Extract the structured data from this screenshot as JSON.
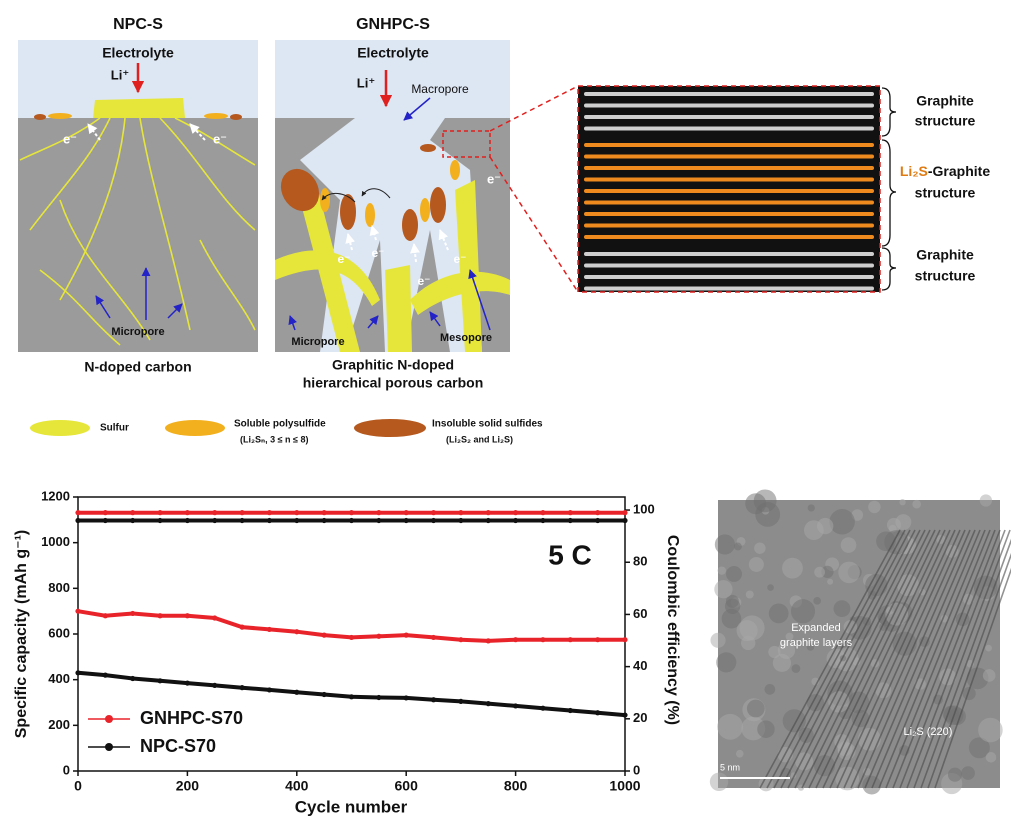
{
  "diagram": {
    "npc": {
      "title": "NPC-S",
      "electrolyte": "Electrolyte",
      "ion": "Li⁺",
      "electron": "e⁻",
      "pore": "Micropore",
      "caption": "N-doped carbon"
    },
    "gnhpc": {
      "title": "GNHPC-S",
      "electrolyte": "Electrolyte",
      "ion": "Li⁺",
      "macropore": "Macropore",
      "electron": "e⁻",
      "micropore": "Micropore",
      "mesopore": "Mesopore",
      "caption": [
        "Graphitic N-doped",
        "hierarchical porous carbon"
      ]
    },
    "zoom": {
      "top": [
        "Graphite",
        "structure"
      ],
      "middle": {
        "compound": "Li₂S",
        "rest": "-Graphite",
        "line2": "structure"
      },
      "bottom": [
        "Graphite",
        "structure"
      ]
    },
    "legend": [
      {
        "label": "Sulfur"
      },
      {
        "label": "Soluble polysulfide",
        "note": "(Li₂Sₙ, 3 ≤ n ≤ 8)"
      },
      {
        "label": "Insoluble solid sulfides",
        "note": "(Li₂S₂ and Li₂S)"
      }
    ]
  },
  "chart_data": {
    "type": "line",
    "annotation": "5 C",
    "x_label": "Cycle number",
    "y_label": "Specific capacity (mAh g⁻¹)",
    "y2_label": "Coulombic efficiency (%)",
    "x": [
      0,
      50,
      100,
      150,
      200,
      250,
      300,
      350,
      400,
      450,
      500,
      550,
      600,
      650,
      700,
      750,
      800,
      850,
      900,
      950,
      1000
    ],
    "series": [
      {
        "name": "GNHPC-S70",
        "color": "#e8242a",
        "values": [
          700,
          680,
          690,
          680,
          680,
          670,
          630,
          620,
          610,
          595,
          585,
          590,
          595,
          585,
          575,
          570,
          575,
          575,
          575,
          575,
          575
        ]
      },
      {
        "name": "NPC-S70",
        "color": "#111111",
        "values": [
          430,
          420,
          405,
          395,
          385,
          375,
          365,
          355,
          345,
          335,
          325,
          322,
          320,
          312,
          305,
          295,
          285,
          275,
          265,
          255,
          245
        ]
      },
      {
        "color": "#e8242a",
        "axis": "y2",
        "values": [
          99,
          99,
          99,
          99,
          99,
          99,
          99,
          99,
          99,
          99,
          99,
          99,
          99,
          99,
          99,
          99,
          99,
          99,
          99,
          99,
          99
        ]
      },
      {
        "color": "#111111",
        "axis": "y2",
        "values": [
          96,
          96,
          96,
          96,
          96,
          96,
          96,
          96,
          96,
          96,
          96,
          96,
          96,
          96,
          96,
          96,
          96,
          96,
          96,
          96,
          96
        ]
      }
    ],
    "xlim": [
      0,
      1000
    ],
    "xticks": [
      0,
      200,
      400,
      600,
      800,
      1000
    ],
    "ylim": [
      0,
      1200
    ],
    "yticks": [
      0,
      200,
      400,
      600,
      800,
      1000,
      1200
    ],
    "y2lim": [
      0,
      105
    ],
    "y2ticks": [
      0,
      20,
      40,
      60,
      80,
      100
    ]
  },
  "tem": {
    "annotation": [
      "Expanded",
      "graphite layers"
    ],
    "phase": "Li₂S (220)",
    "scale": "5 nm"
  }
}
